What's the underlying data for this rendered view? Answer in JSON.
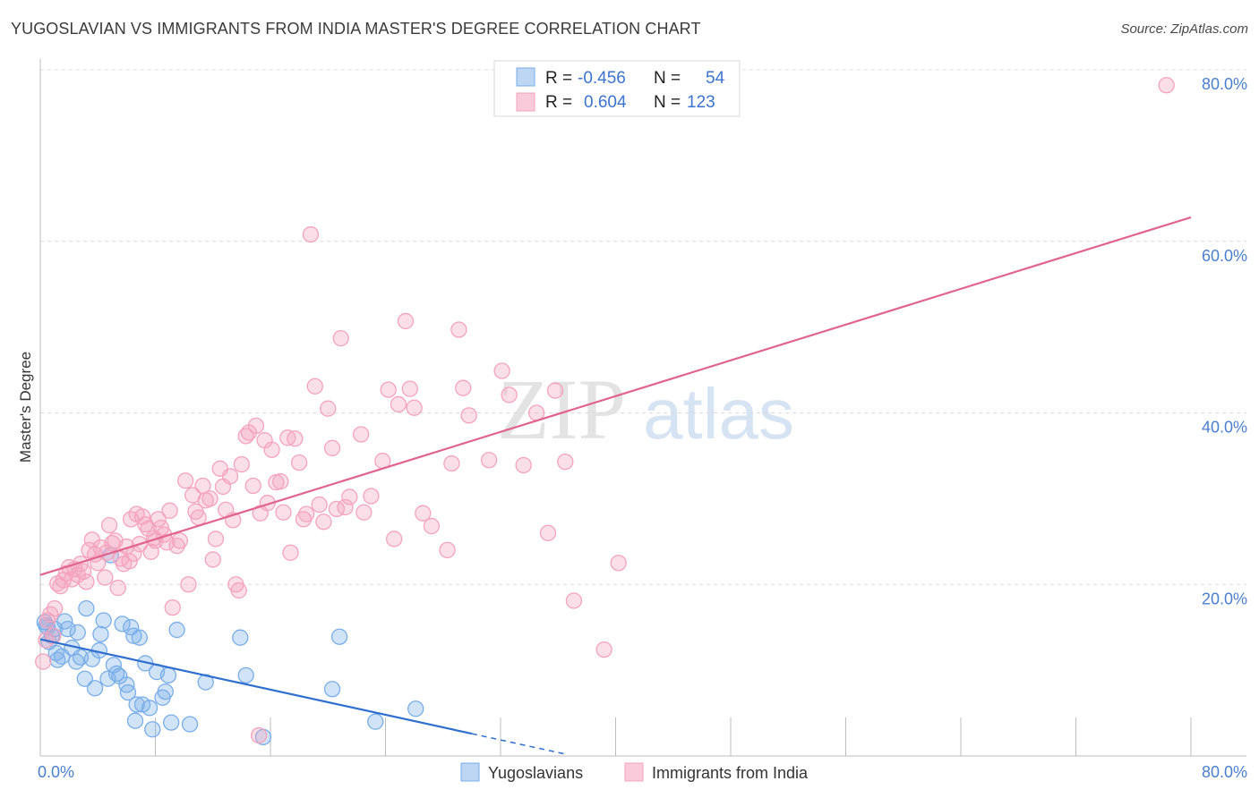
{
  "title": "YUGOSLAVIAN VS IMMIGRANTS FROM INDIA MASTER'S DEGREE CORRELATION CHART",
  "source": "Source: ZipAtlas.com",
  "watermark": {
    "zip": "ZIP",
    "atlas": "atlas"
  },
  "chart_data": {
    "type": "scatter",
    "xlabel": "",
    "ylabel": "Master's Degree",
    "xlim": [
      0,
      80
    ],
    "ylim": [
      0,
      80
    ],
    "x_tick_labels": [
      "0.0%",
      "80.0%"
    ],
    "y_ticks": [
      20,
      40,
      60,
      80
    ],
    "y_tick_labels": [
      "20.0%",
      "40.0%",
      "60.0%",
      "80.0%"
    ],
    "grid": true,
    "legend": {
      "placement": "top-center",
      "rows": [
        {
          "r_label": "R =",
          "r_value": "-0.456",
          "n_label": "N =",
          "n_value": "54"
        },
        {
          "r_label": "R =",
          "r_value": "0.604",
          "n_label": "N =",
          "n_value": "123"
        }
      ]
    },
    "series": [
      {
        "name": "Yugoslavians",
        "color": "#7aaee8",
        "line_color": "#2f6fd0",
        "trend": {
          "x0": 0,
          "y0": 13.6,
          "x1": 30,
          "y1": 2.6,
          "dash_to_x": 36.5
        },
        "points": [
          [
            0.3,
            15.6
          ],
          [
            0.5,
            15.0
          ],
          [
            0.6,
            13.3
          ],
          [
            0.8,
            14.0
          ],
          [
            1.0,
            14.8
          ],
          [
            1.2,
            11.2
          ],
          [
            1.5,
            11.6
          ],
          [
            1.7,
            15.7
          ],
          [
            1.9,
            14.8
          ],
          [
            2.2,
            12.6
          ],
          [
            2.5,
            11.0
          ],
          [
            2.6,
            14.4
          ],
          [
            2.8,
            11.5
          ],
          [
            3.1,
            9.0
          ],
          [
            3.2,
            17.2
          ],
          [
            3.6,
            11.3
          ],
          [
            3.8,
            7.9
          ],
          [
            4.1,
            12.3
          ],
          [
            4.2,
            14.2
          ],
          [
            4.4,
            15.8
          ],
          [
            4.7,
            9.0
          ],
          [
            4.9,
            23.4
          ],
          [
            5.1,
            10.6
          ],
          [
            5.3,
            9.6
          ],
          [
            5.5,
            9.3
          ],
          [
            5.7,
            15.4
          ],
          [
            6.0,
            8.3
          ],
          [
            6.1,
            7.4
          ],
          [
            6.3,
            15.0
          ],
          [
            6.5,
            14.0
          ],
          [
            6.6,
            4.1
          ],
          [
            6.7,
            6.0
          ],
          [
            6.9,
            13.8
          ],
          [
            7.1,
            6.0
          ],
          [
            7.3,
            10.8
          ],
          [
            7.6,
            5.6
          ],
          [
            7.8,
            3.1
          ],
          [
            8.1,
            9.8
          ],
          [
            8.5,
            6.8
          ],
          [
            8.7,
            7.5
          ],
          [
            8.9,
            9.4
          ],
          [
            9.1,
            3.9
          ],
          [
            9.5,
            14.7
          ],
          [
            10.4,
            3.7
          ],
          [
            11.5,
            8.6
          ],
          [
            13.9,
            13.8
          ],
          [
            14.3,
            9.4
          ],
          [
            15.5,
            2.2
          ],
          [
            20.3,
            7.8
          ],
          [
            20.8,
            13.9
          ],
          [
            23.3,
            4.0
          ],
          [
            26.1,
            5.5
          ],
          [
            0.4,
            15.2
          ],
          [
            1.1,
            12.0
          ]
        ]
      },
      {
        "name": "Immigrants from India",
        "color": "#f4a3bd",
        "line_color": "#e0648e",
        "trend": {
          "x0": 0,
          "y0": 21.1,
          "x1": 80,
          "y1": 62.8
        },
        "points": [
          [
            0.2,
            11.0
          ],
          [
            0.4,
            13.5
          ],
          [
            0.5,
            15.8
          ],
          [
            0.7,
            16.5
          ],
          [
            0.9,
            14.0
          ],
          [
            1.0,
            17.2
          ],
          [
            1.2,
            20.1
          ],
          [
            1.4,
            19.8
          ],
          [
            1.6,
            20.5
          ],
          [
            1.8,
            21.3
          ],
          [
            2.0,
            22.0
          ],
          [
            2.2,
            20.6
          ],
          [
            2.4,
            21.8
          ],
          [
            2.6,
            21.1
          ],
          [
            2.8,
            22.4
          ],
          [
            3.0,
            21.5
          ],
          [
            3.2,
            20.3
          ],
          [
            3.4,
            24.0
          ],
          [
            3.6,
            25.2
          ],
          [
            3.8,
            23.5
          ],
          [
            4.0,
            22.5
          ],
          [
            4.2,
            24.3
          ],
          [
            4.5,
            20.8
          ],
          [
            4.6,
            23.7
          ],
          [
            4.8,
            26.9
          ],
          [
            5.0,
            24.8
          ],
          [
            5.2,
            25.1
          ],
          [
            5.4,
            19.6
          ],
          [
            5.6,
            23.0
          ],
          [
            5.8,
            22.4
          ],
          [
            6.0,
            24.4
          ],
          [
            6.2,
            22.7
          ],
          [
            6.3,
            27.6
          ],
          [
            6.5,
            23.6
          ],
          [
            6.7,
            28.2
          ],
          [
            6.9,
            24.7
          ],
          [
            7.1,
            27.9
          ],
          [
            7.3,
            27.0
          ],
          [
            7.5,
            26.5
          ],
          [
            7.7,
            23.8
          ],
          [
            7.9,
            25.4
          ],
          [
            8.0,
            25.1
          ],
          [
            8.2,
            27.6
          ],
          [
            8.4,
            26.6
          ],
          [
            8.6,
            25.8
          ],
          [
            8.8,
            24.9
          ],
          [
            9.0,
            28.6
          ],
          [
            9.2,
            17.3
          ],
          [
            9.5,
            24.5
          ],
          [
            9.7,
            25.1
          ],
          [
            10.1,
            32.1
          ],
          [
            10.3,
            20.0
          ],
          [
            10.6,
            30.4
          ],
          [
            10.8,
            28.5
          ],
          [
            11.0,
            27.8
          ],
          [
            11.3,
            31.5
          ],
          [
            11.5,
            29.8
          ],
          [
            11.8,
            30.0
          ],
          [
            12.0,
            22.9
          ],
          [
            12.2,
            25.3
          ],
          [
            12.5,
            33.5
          ],
          [
            12.7,
            31.4
          ],
          [
            12.9,
            28.7
          ],
          [
            13.2,
            32.6
          ],
          [
            13.4,
            27.5
          ],
          [
            13.6,
            20.0
          ],
          [
            13.8,
            19.3
          ],
          [
            14.0,
            34.0
          ],
          [
            14.3,
            37.3
          ],
          [
            14.5,
            37.7
          ],
          [
            14.8,
            31.5
          ],
          [
            15.0,
            38.5
          ],
          [
            15.3,
            28.3
          ],
          [
            15.6,
            36.8
          ],
          [
            15.8,
            29.5
          ],
          [
            16.1,
            35.7
          ],
          [
            16.4,
            31.9
          ],
          [
            16.7,
            32.0
          ],
          [
            16.9,
            28.4
          ],
          [
            17.2,
            37.1
          ],
          [
            17.4,
            23.7
          ],
          [
            17.7,
            37.0
          ],
          [
            18.0,
            34.2
          ],
          [
            18.3,
            27.6
          ],
          [
            18.5,
            28.2
          ],
          [
            18.8,
            60.8
          ],
          [
            19.1,
            43.1
          ],
          [
            19.4,
            29.3
          ],
          [
            19.7,
            27.3
          ],
          [
            20.0,
            40.5
          ],
          [
            20.3,
            35.9
          ],
          [
            20.6,
            28.8
          ],
          [
            20.9,
            48.7
          ],
          [
            21.2,
            29.0
          ],
          [
            21.5,
            30.2
          ],
          [
            22.3,
            37.5
          ],
          [
            22.5,
            28.4
          ],
          [
            23.0,
            30.3
          ],
          [
            23.8,
            34.4
          ],
          [
            24.2,
            42.7
          ],
          [
            24.6,
            25.3
          ],
          [
            24.9,
            41.0
          ],
          [
            25.4,
            50.7
          ],
          [
            25.7,
            42.8
          ],
          [
            26.0,
            40.6
          ],
          [
            26.6,
            28.3
          ],
          [
            27.2,
            26.8
          ],
          [
            28.3,
            24.0
          ],
          [
            28.6,
            34.1
          ],
          [
            29.1,
            49.7
          ],
          [
            29.4,
            42.9
          ],
          [
            29.8,
            39.7
          ],
          [
            31.2,
            34.5
          ],
          [
            32.1,
            44.9
          ],
          [
            32.6,
            42.1
          ],
          [
            33.6,
            33.9
          ],
          [
            34.5,
            40.0
          ],
          [
            35.3,
            26.0
          ],
          [
            35.8,
            42.6
          ],
          [
            36.5,
            34.3
          ],
          [
            37.1,
            18.1
          ],
          [
            39.2,
            12.4
          ],
          [
            40.2,
            22.5
          ],
          [
            78.3,
            78.2
          ],
          [
            15.2,
            2.4
          ]
        ]
      }
    ]
  },
  "bottom_legend": [
    "Yugoslavians",
    "Immigrants from India"
  ]
}
